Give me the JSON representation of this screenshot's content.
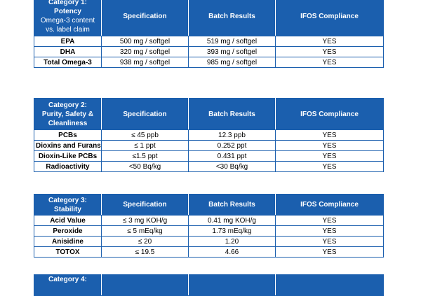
{
  "column_headers": {
    "specification": "Specification",
    "batch_results": "Batch Results",
    "compliance": "IFOS Compliance"
  },
  "tables": [
    {
      "category_line1": "Category 1:",
      "category_line2": "Potency",
      "category_note": "Omega-3 content vs. label claim",
      "rows": [
        {
          "param": "EPA",
          "spec": "500 mg / softgel",
          "result": "519 mg / softgel",
          "compliance": "YES"
        },
        {
          "param": "DHA",
          "spec": "320 mg / softgel",
          "result": "393 mg / softgel",
          "compliance": "YES"
        },
        {
          "param": "Total Omega-3",
          "spec": "938 mg / softgel",
          "result": "985 mg / softgel",
          "compliance": "YES"
        }
      ]
    },
    {
      "category_line1": "Category 2:",
      "category_line2": "Purity, Safety & Cleanliness",
      "rows": [
        {
          "param": "PCBs",
          "spec": "≤ 45 ppb",
          "result": "12.3 ppb",
          "compliance": "YES"
        },
        {
          "param": "Dioxins and Furans",
          "spec": "≤ 1 ppt",
          "result": "0.252 ppt",
          "compliance": "YES"
        },
        {
          "param": "Dioxin-Like PCBs",
          "spec": "≤1.5 ppt",
          "result": "0.431 ppt",
          "compliance": "YES"
        },
        {
          "param": "Radioactivity",
          "spec": "<50 Bq/kg",
          "result": "<30 Bq/kg",
          "compliance": "YES"
        }
      ]
    },
    {
      "category_line1": "Category 3:",
      "category_line2": "Stability",
      "rows": [
        {
          "param": "Acid Value",
          "spec": "≤ 3 mg KOH/g",
          "result": "0.41 mg KOH/g",
          "compliance": "YES"
        },
        {
          "param": "Peroxide",
          "spec": "≤ 5 mEq/kg",
          "result": "1.73 mEq/kg",
          "compliance": "YES"
        },
        {
          "param": "Anisidine",
          "spec": "≤ 20",
          "result": "1.20",
          "compliance": "YES"
        },
        {
          "param": "TOTOX",
          "spec": "≤ 19.5",
          "result": "4.66",
          "compliance": "YES"
        }
      ]
    },
    {
      "category_line1": "Category 4:"
    }
  ]
}
